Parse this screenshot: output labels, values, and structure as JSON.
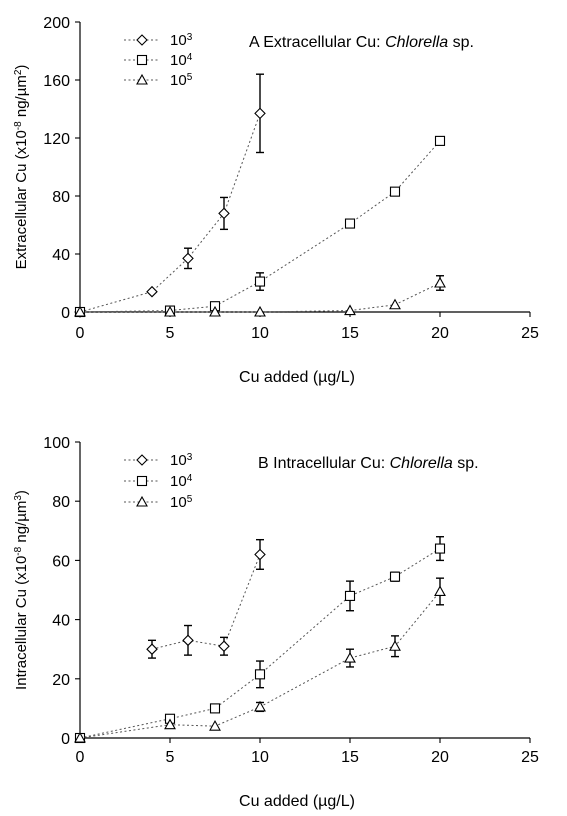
{
  "chart_data": [
    {
      "type": "scatter",
      "panel_label": "A",
      "title": "Extracellular Cu: ",
      "title_italic": "Chlorella",
      "title_suffix": " sp.",
      "ylabel": "Extracellular Cu (x10",
      "ylabel_exp": "-8",
      "ylabel_unit": " ng/µm",
      "ylabel_unit_exp": "2",
      "ylabel_close": ")",
      "xlabel": "Cu added (µg/L)",
      "xlim": [
        0,
        25
      ],
      "ylim": [
        0,
        200
      ],
      "xticks": [
        0,
        5,
        10,
        15,
        20,
        25
      ],
      "yticks": [
        0,
        40,
        80,
        120,
        160,
        200
      ],
      "grid": false,
      "legend_position": "top-left",
      "series": [
        {
          "name": "10",
          "name_exp": "3",
          "marker": "diamond",
          "points": [
            {
              "x": 0,
              "y": 0
            },
            {
              "x": 4,
              "y": 14
            },
            {
              "x": 6,
              "y": 37,
              "err": 7
            },
            {
              "x": 8,
              "y": 68,
              "err": 11
            },
            {
              "x": 10,
              "y": 137,
              "err": 27
            }
          ]
        },
        {
          "name": "10",
          "name_exp": "4",
          "marker": "square",
          "points": [
            {
              "x": 0,
              "y": 0
            },
            {
              "x": 5,
              "y": 1
            },
            {
              "x": 7.5,
              "y": 4
            },
            {
              "x": 10,
              "y": 21,
              "err": 6
            },
            {
              "x": 15,
              "y": 61
            },
            {
              "x": 17.5,
              "y": 83
            },
            {
              "x": 20,
              "y": 118
            }
          ]
        },
        {
          "name": "10",
          "name_exp": "5",
          "marker": "triangle",
          "points": [
            {
              "x": 0,
              "y": 0
            },
            {
              "x": 5,
              "y": 0
            },
            {
              "x": 7.5,
              "y": 0
            },
            {
              "x": 10,
              "y": 0
            },
            {
              "x": 15,
              "y": 1
            },
            {
              "x": 17.5,
              "y": 5
            },
            {
              "x": 20,
              "y": 20,
              "err": 5
            }
          ]
        }
      ]
    },
    {
      "type": "scatter",
      "panel_label": "B",
      "title": "Intracellular Cu: ",
      "title_italic": "Chlorella",
      "title_suffix": " sp.",
      "ylabel": "Intracellular Cu (x10",
      "ylabel_exp": "-8",
      "ylabel_unit": " ng/µm",
      "ylabel_unit_exp": "3",
      "ylabel_close": ")",
      "xlabel": "Cu added (µg/L)",
      "xlim": [
        0,
        25
      ],
      "ylim": [
        0,
        100
      ],
      "xticks": [
        0,
        5,
        10,
        15,
        20,
        25
      ],
      "yticks": [
        0,
        20,
        40,
        60,
        80,
        100
      ],
      "grid": false,
      "legend_position": "top-left",
      "series": [
        {
          "name": "10",
          "name_exp": "3",
          "marker": "diamond",
          "points": [
            {
              "x": 4,
              "y": 30,
              "err": 3
            },
            {
              "x": 6,
              "y": 33,
              "err": 5
            },
            {
              "x": 8,
              "y": 31,
              "err": 3
            },
            {
              "x": 10,
              "y": 62,
              "err": 5
            }
          ]
        },
        {
          "name": "10",
          "name_exp": "4",
          "marker": "square",
          "points": [
            {
              "x": 0,
              "y": 0
            },
            {
              "x": 5,
              "y": 6.5
            },
            {
              "x": 7.5,
              "y": 10
            },
            {
              "x": 10,
              "y": 21.5,
              "err": 4.5
            },
            {
              "x": 15,
              "y": 48,
              "err": 5
            },
            {
              "x": 17.5,
              "y": 54.5,
              "err": 1.5
            },
            {
              "x": 20,
              "y": 64,
              "err": 4
            }
          ]
        },
        {
          "name": "10",
          "name_exp": "5",
          "marker": "triangle",
          "points": [
            {
              "x": 0,
              "y": 0
            },
            {
              "x": 5,
              "y": 4.5
            },
            {
              "x": 7.5,
              "y": 4
            },
            {
              "x": 10,
              "y": 10.5,
              "err": 1.5
            },
            {
              "x": 15,
              "y": 27,
              "err": 3
            },
            {
              "x": 17.5,
              "y": 31,
              "err": 3.5
            },
            {
              "x": 20,
              "y": 49.5,
              "err": 4.5
            }
          ]
        }
      ]
    }
  ]
}
